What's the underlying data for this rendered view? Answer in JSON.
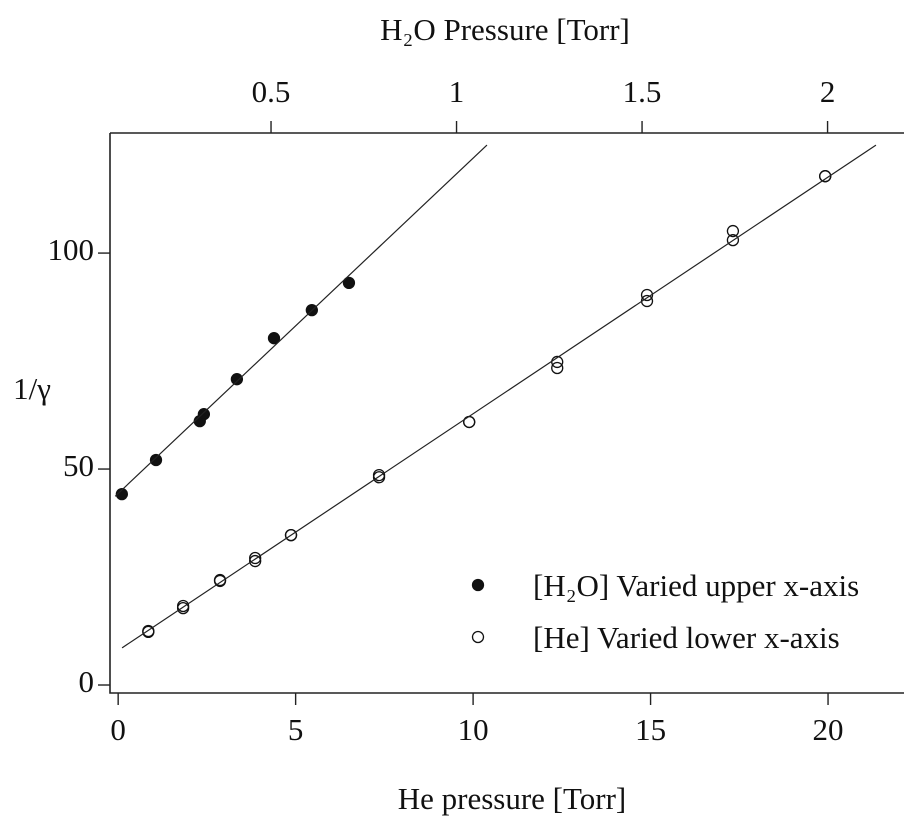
{
  "chart_data": {
    "type": "scatter",
    "title": "H₂O Pressure [Torr]",
    "x_label": "He pressure [Torr]",
    "y_label": "1/γ",
    "xlim": [
      -0.23,
      22.14
    ],
    "xticks": [
      0,
      5,
      10,
      15,
      20
    ],
    "x2lim": [
      0.066,
      2.206
    ],
    "x2ticks": [
      0.5,
      1,
      1.5,
      2
    ],
    "ylim": [
      -1.85,
      127.8
    ],
    "yticks": [
      0,
      50,
      100
    ],
    "legend": "lower right",
    "series": [
      {
        "name": "[H₂O] Varied   upper x-axis",
        "marker": "filled",
        "color": "#111111",
        "axis": "x2",
        "x": [
          0.098,
          0.19,
          0.308,
          0.319,
          0.408,
          0.508,
          0.61,
          0.71
        ],
        "values": [
          44.2,
          52.1,
          61.1,
          62.7,
          70.8,
          80.3,
          86.8,
          93.1
        ]
      },
      {
        "name": "[He] Varied   lower x-axis",
        "marker": "open",
        "color": "#111111",
        "x": [
          0.85,
          0.85,
          1.83,
          1.83,
          2.87,
          2.87,
          3.86,
          3.86,
          4.87,
          4.87,
          7.35,
          7.35,
          9.89,
          9.89,
          12.37,
          12.37,
          14.9,
          14.9,
          17.32,
          17.32,
          19.92,
          19.92
        ],
        "values": [
          12.3,
          12.5,
          17.8,
          18.3,
          24.3,
          24.1,
          28.7,
          29.4,
          34.7,
          34.7,
          48.1,
          48.6,
          60.9,
          60.9,
          74.8,
          73.4,
          90.3,
          88.9,
          105.1,
          103.0,
          117.8,
          117.8
        ]
      },
      {
        "marker": "line",
        "color": "#222222",
        "axis": "x2",
        "x": [
          0.08,
          1.082
        ],
        "values": [
          43.7,
          125
        ]
      },
      {
        "marker": "line",
        "color": "#222222",
        "x": [
          0.11,
          21.35
        ],
        "values": [
          8.6,
          125
        ]
      }
    ]
  }
}
